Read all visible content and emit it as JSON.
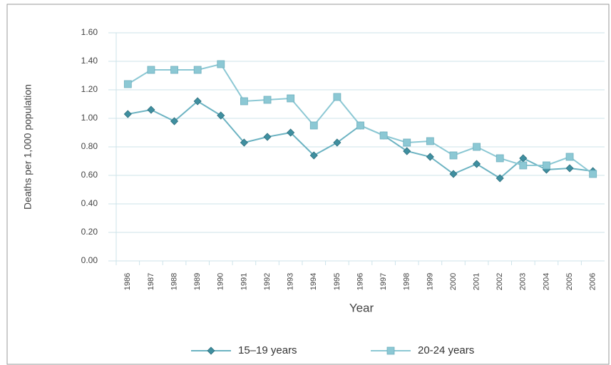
{
  "chart_data": {
    "type": "line",
    "y_label": "Deaths per 1,000 population",
    "x_label": "Year",
    "categories": [
      "1986",
      "1987",
      "1988",
      "1989",
      "1990",
      "1991",
      "1992",
      "1993",
      "1994",
      "1995",
      "1996",
      "1997",
      "1998",
      "1999",
      "2000",
      "2001",
      "2002",
      "2003",
      "2004",
      "2005",
      "2006"
    ],
    "series": [
      {
        "name": "15–19 years",
        "color": "#3f8fa0",
        "line_color": "#6cb3c2",
        "marker": "diamond",
        "values": [
          1.03,
          1.06,
          0.98,
          1.12,
          1.02,
          0.83,
          0.87,
          0.9,
          0.74,
          0.83,
          0.95,
          0.88,
          0.77,
          0.73,
          0.61,
          0.68,
          0.58,
          0.72,
          0.64,
          0.65,
          0.63
        ]
      },
      {
        "name": "20-24 years",
        "color": "#8cc8d4",
        "line_color": "#8cc8d4",
        "marker": "square",
        "values": [
          1.24,
          1.34,
          1.34,
          1.34,
          1.38,
          1.12,
          1.13,
          1.14,
          0.95,
          1.15,
          0.95,
          0.88,
          0.83,
          0.84,
          0.74,
          0.8,
          0.72,
          0.67,
          0.67,
          0.73,
          0.61
        ]
      }
    ],
    "ylim": [
      0,
      1.6
    ],
    "yticks": [
      {
        "value": 0,
        "label": "0.00"
      },
      {
        "value": 0.2,
        "label": "0.20"
      },
      {
        "value": 0.4,
        "label": "0.40"
      },
      {
        "value": 0.6,
        "label": "0.60"
      },
      {
        "value": 0.8,
        "label": "0.80"
      },
      {
        "value": 1.0,
        "label": "1.00"
      },
      {
        "value": 1.2,
        "label": "1.20"
      },
      {
        "value": 1.4,
        "label": "1.40"
      },
      {
        "value": 1.6,
        "label": "1.60"
      }
    ],
    "grid": true
  }
}
